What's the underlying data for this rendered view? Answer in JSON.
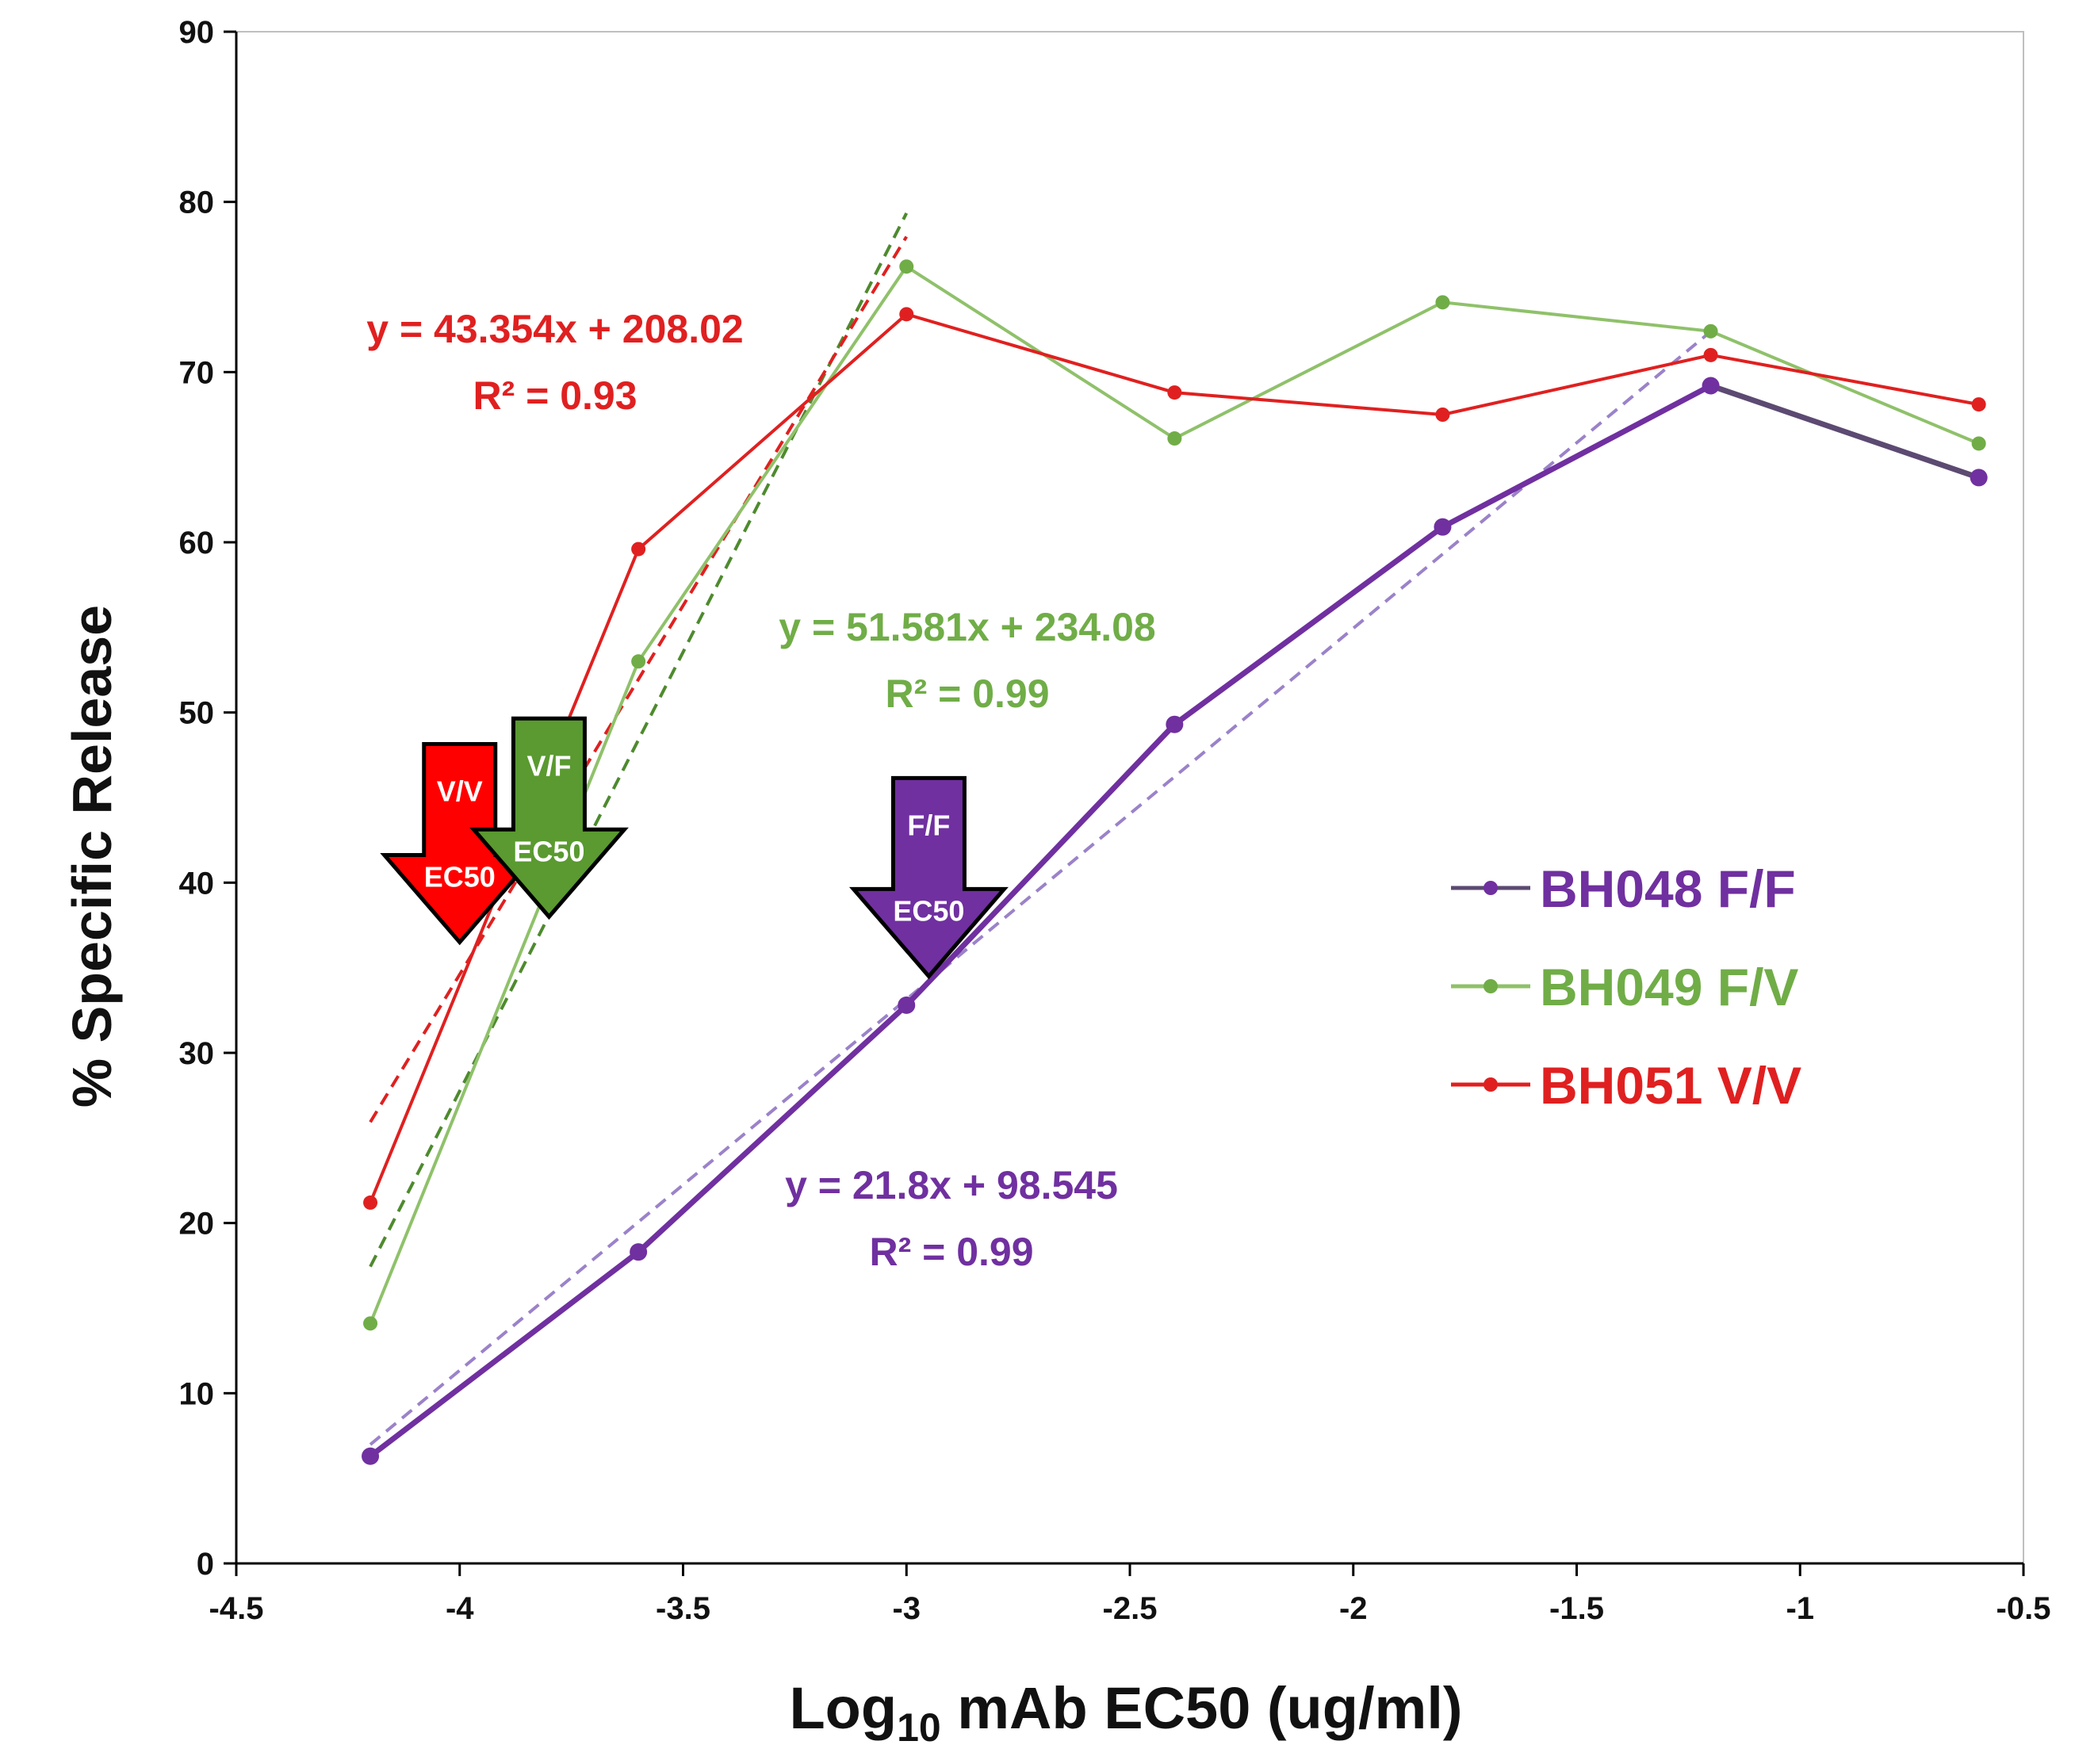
{
  "chart_data": {
    "type": "line",
    "xlabel_main": "Log",
    "xlabel_sub": "10",
    "xlabel_rest": " mAb EC50 (ug/ml)",
    "ylabel": "% Specific Release",
    "xlim": [
      -4.5,
      -0.5
    ],
    "ylim": [
      0,
      90
    ],
    "xticks": [
      "-4.5",
      "-4",
      "-3.5",
      "-3",
      "-2.5",
      "-2",
      "-1.5",
      "-1",
      "-0.5"
    ],
    "yticks": [
      "0",
      "10",
      "20",
      "30",
      "40",
      "50",
      "60",
      "70",
      "80",
      "90"
    ],
    "x": [
      -4.2,
      -3.6,
      -3.0,
      -2.4,
      -1.8,
      -1.2,
      -0.6
    ],
    "series": [
      {
        "name": "BH048 F/F",
        "color": "#7030a0",
        "line_color": "#5c4a72",
        "values": [
          6.3,
          18.3,
          32.8,
          49.3,
          60.9,
          69.2,
          63.8
        ],
        "trend": {
          "slope": 21.8,
          "intercept": 98.545,
          "x_range": [
            -4.2,
            -1.2
          ],
          "color": "#9b82c9"
        },
        "equation": "y = 21.8x + 98.545",
        "r2": "R² = 0.99"
      },
      {
        "name": "BH049 F/V",
        "color": "#70ad47",
        "line_color": "#8fc16a",
        "values": [
          14.1,
          53.0,
          76.2,
          66.1,
          74.1,
          72.4,
          65.8
        ],
        "trend": {
          "slope": 51.581,
          "intercept": 234.08,
          "x_range": [
            -4.2,
            -3.0
          ],
          "color": "#4e8a2e"
        },
        "equation": "y = 51.581x + 234.08",
        "r2": "R² = 0.99"
      },
      {
        "name": "BH051 V/V",
        "color": "#e02020",
        "line_color": "#e02020",
        "values": [
          21.2,
          59.6,
          73.4,
          68.8,
          67.5,
          71.0,
          68.1
        ],
        "trend": {
          "slope": 43.354,
          "intercept": 208.02,
          "x_range": [
            -4.2,
            -3.0
          ],
          "color": "#e02020"
        },
        "equation": "y = 43.354x + 208.02",
        "r2": "R² = 0.93"
      }
    ],
    "ec50_markers": [
      {
        "label1": "V/V",
        "label2": "EC50",
        "x": -4.0,
        "tip_y": 36.5,
        "fill": "#ff0000"
      },
      {
        "label1": "V/F",
        "label2": "EC50",
        "x": -3.8,
        "tip_y": 38.0,
        "fill": "#5a9a30"
      },
      {
        "label1": "F/F",
        "label2": "EC50",
        "x": -2.95,
        "tip_y": 34.5,
        "fill": "#7030a0"
      }
    ],
    "legend_position": "right-middle"
  }
}
